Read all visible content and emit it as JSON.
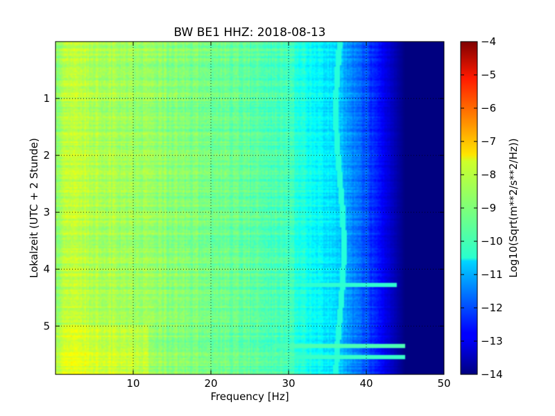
{
  "chart_data": {
    "type": "heatmap",
    "title": "BW BE1 HHZ: 2018-08-13",
    "xlabel": "Frequency [Hz]",
    "ylabel": "Lokalzeit (UTC + 2 Stunde)",
    "xlim": [
      0,
      50
    ],
    "ylim": [
      5.85,
      0
    ],
    "x_ticks": [
      10,
      20,
      30,
      40,
      50
    ],
    "y_ticks": [
      1,
      2,
      3,
      4,
      5
    ],
    "grid": true,
    "colormap": "jet",
    "colorbar": {
      "label": "Log10(Sqrt(m**2/s**2/Hz))",
      "range": [
        -14,
        -4
      ],
      "ticks": [
        -4,
        -5,
        -6,
        -7,
        -8,
        -9,
        -10,
        -11,
        -12,
        -13,
        -14
      ]
    },
    "value_profile": {
      "frequency_hz": [
        0,
        2,
        5,
        10,
        15,
        20,
        25,
        30,
        33,
        36,
        38,
        40,
        42,
        44,
        45,
        50
      ],
      "log10_amplitude": [
        -8.9,
        -8.3,
        -8.5,
        -8.7,
        -8.9,
        -9.1,
        -9.3,
        -9.6,
        -10.2,
        -10.6,
        -11.3,
        -12.0,
        -12.8,
        -13.6,
        -14.0,
        -14.0
      ]
    },
    "highlight_bands": [
      {
        "time_h": 4.28,
        "fmax_hz": 44,
        "log10_amplitude": -9.8
      },
      {
        "time_h": 5.35,
        "fmax_hz": 45,
        "log10_amplitude": -9.5
      },
      {
        "time_h": 5.55,
        "fmax_hz": 45,
        "log10_amplitude": -9.7
      }
    ]
  }
}
